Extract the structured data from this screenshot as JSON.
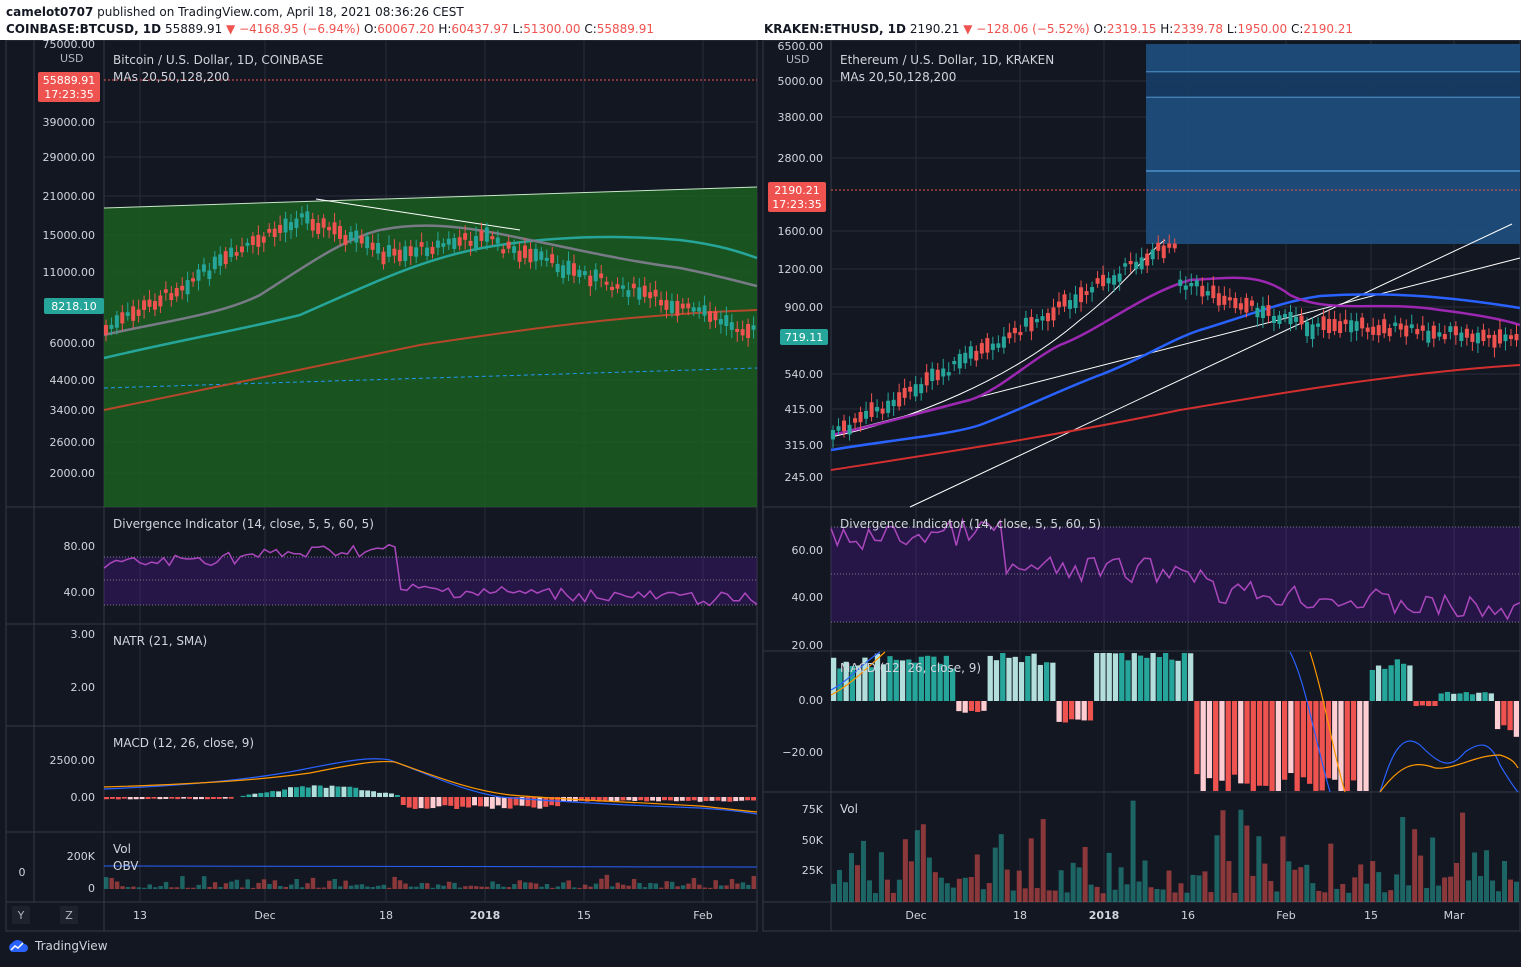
{
  "publish": {
    "author": "camelot0707",
    "text": " published on TradingView.com, April 18, 2021 08:36:26 CEST"
  },
  "left_ohlc": {
    "symbol": "COINBASE:BTCUSD, 1D",
    "last": "55889.91",
    "change": "▼ −4168.95 (−6.94%)",
    "o_label": "O:",
    "o": "60067.20",
    "h_label": "H:",
    "h": "60437.97",
    "l_label": "L:",
    "l": "51300.00",
    "c_label": "C:",
    "c": "55889.91"
  },
  "right_ohlc": {
    "symbol": "KRAKEN:ETHUSD, 1D",
    "last": "2190.21",
    "change": "▼ −128.06 (−5.52%)",
    "o_label": "O:",
    "o": "2319.15",
    "h_label": "H:",
    "h": "2339.78",
    "l_label": "L:",
    "l": "1950.00",
    "c_label": "C:",
    "c": "2190.21"
  },
  "left_chart": {
    "title": "Bitcoin / U.S. Dollar, 1D, COINBASE",
    "mas": "MAs 20,50,128,200",
    "currency": "USD",
    "price_badge": "55889.91",
    "price_timer": "17:23:35",
    "badge_green": "8218.10",
    "price_ticks": [
      "75000.00",
      "39000.00",
      "29000.00",
      "21000.00",
      "15000.00",
      "11000.00",
      "6000.00",
      "4400.00",
      "3400.00",
      "2600.00",
      "2000.00"
    ],
    "div_title": "Divergence Indicator (14, close, 5, 5, 60, 5)",
    "div_ticks": [
      "80.00",
      "40.00"
    ],
    "natr_title": "NATR (21, SMA)",
    "natr_ticks": [
      "3.00",
      "2.00"
    ],
    "macd_title": "MACD (12, 26, close, 9)",
    "macd_ticks": [
      "2500.00",
      "0.00"
    ],
    "vol_title": "Vol",
    "obv_title": "OBV",
    "vol_ticks": [
      "200K",
      "0"
    ],
    "vol_zero": "0",
    "time_ticks": [
      "13",
      "Dec",
      "18",
      "2018",
      "15",
      "Feb"
    ],
    "tool_y": "Y",
    "tool_z": "Z"
  },
  "right_chart": {
    "title": "Ethereum / U.S. Dollar, 1D, KRAKEN",
    "mas": "MAs 20,50,128,200",
    "currency": "USD",
    "price_badge": "2190.21",
    "price_timer": "17:23:35",
    "badge_green": "719.11",
    "price_ticks": [
      "6500.00",
      "5000.00",
      "3800.00",
      "2800.00",
      "1600.00",
      "1200.00",
      "900.00",
      "540.00",
      "415.00",
      "315.00",
      "245.00"
    ],
    "div_title": "Divergence Indicator (14, close, 5, 5, 60, 5)",
    "div_ticks": [
      "60.00",
      "40.00",
      "20.00"
    ],
    "macd_title": "MACD (12, 26, close, 9)",
    "macd_ticks": [
      "0.00",
      "−20.00"
    ],
    "vol_title": "Vol",
    "vol_ticks": [
      "75K",
      "50K",
      "25K"
    ],
    "time_ticks": [
      "Dec",
      "18",
      "2018",
      "16",
      "Feb",
      "15",
      "Mar"
    ]
  },
  "footer": {
    "brand": "TradingView"
  },
  "colors": {
    "up": "#26a69a",
    "down": "#ef5350",
    "ma20": "#787b86",
    "ma50": "#26a69a",
    "ma200": "#b7472a",
    "eth_ma": "#9c27b0",
    "eth_ma2": "#2962ff",
    "eth_ma3": "#d32f2f",
    "green_fill": "#1b5e20",
    "blue_box": "#1e4f80"
  }
}
